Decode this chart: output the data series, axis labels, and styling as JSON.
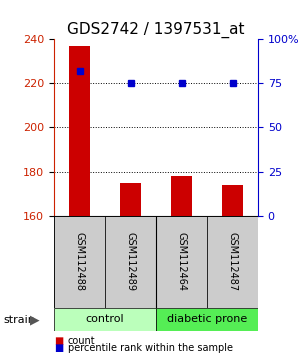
{
  "title": "GDS2742 / 1397531_at",
  "samples": [
    "GSM112488",
    "GSM112489",
    "GSM112464",
    "GSM112487"
  ],
  "counts": [
    237,
    175,
    178,
    174
  ],
  "percentiles": [
    82,
    75,
    75,
    75
  ],
  "ylim_left": [
    160,
    240
  ],
  "ylim_right": [
    0,
    100
  ],
  "yticks_left": [
    160,
    180,
    200,
    220,
    240
  ],
  "yticks_right": [
    0,
    25,
    50,
    75,
    100
  ],
  "bar_color": "#cc0000",
  "dot_color": "#0000cc",
  "group_colors_control": "#bbffbb",
  "group_colors_diabetic": "#55ee55",
  "sample_bg_color": "#cccccc",
  "title_fontsize": 11,
  "tick_fontsize": 8,
  "label_fontsize": 7,
  "legend_fontsize": 7,
  "count_label": "count",
  "percentile_label": "percentile rank within the sample",
  "strain_label": "strain"
}
